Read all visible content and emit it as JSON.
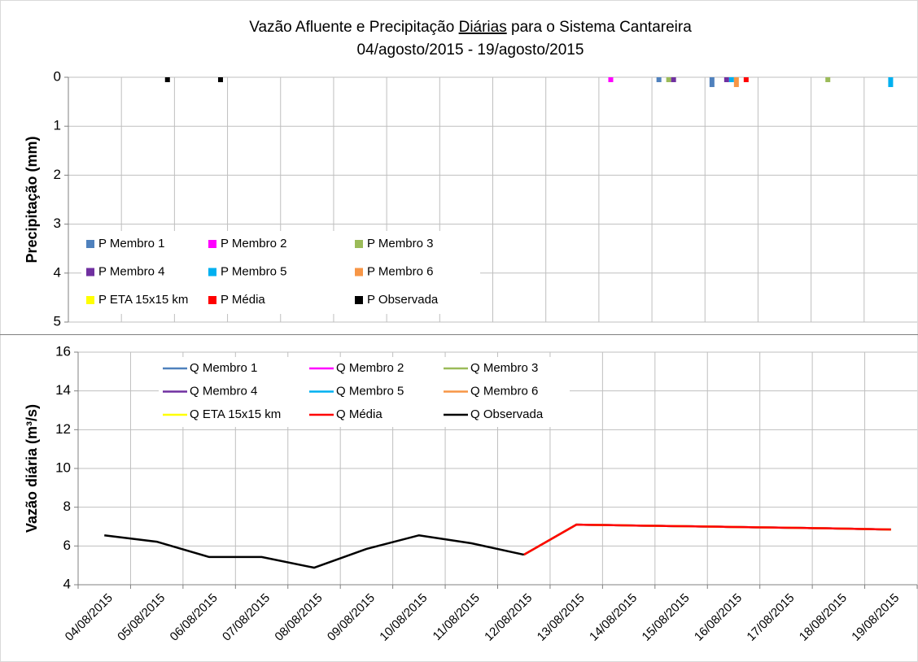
{
  "chart_data": [
    {
      "type": "bar",
      "title_parts": [
        "Vazão Afluente e Precipitação ",
        "Diárias",
        " para o Sistema Cantareira"
      ],
      "subtitle": "04/agosto/2015 - 19/agosto/2015",
      "ylabel": "Precipitação (mm)",
      "ylim": [
        0,
        5
      ],
      "y_inverted": true,
      "yticks": [
        0,
        1,
        2,
        3,
        4,
        5
      ],
      "grid": true,
      "series": [
        {
          "name": "P Membro 1",
          "color": "#4f81bd",
          "values": [
            0,
            0,
            0,
            0,
            0,
            0,
            0,
            0,
            0,
            0,
            0,
            0.1,
            0.2,
            0,
            0,
            0
          ]
        },
        {
          "name": "P Membro 2",
          "color": "#ff00ff",
          "values": [
            0,
            0,
            0,
            0,
            0,
            0,
            0,
            0,
            0,
            0,
            0.1,
            0,
            0,
            0,
            0,
            0
          ]
        },
        {
          "name": "P Membro 3",
          "color": "#9bbb59",
          "values": [
            0,
            0,
            0,
            0,
            0,
            0,
            0,
            0,
            0,
            0,
            0,
            0.1,
            0,
            0,
            0.1,
            0
          ]
        },
        {
          "name": "P Membro 4",
          "color": "#7030a0",
          "values": [
            0,
            0,
            0,
            0,
            0,
            0,
            0,
            0,
            0,
            0,
            0,
            0.1,
            0.1,
            0,
            0,
            0
          ]
        },
        {
          "name": "P Membro 5",
          "color": "#00b0f0",
          "values": [
            0,
            0,
            0,
            0,
            0,
            0,
            0,
            0,
            0,
            0,
            0,
            0,
            0.1,
            0,
            0,
            0.2
          ]
        },
        {
          "name": "P Membro 6",
          "color": "#f79646",
          "values": [
            0,
            0,
            0,
            0,
            0,
            0,
            0,
            0,
            0,
            0,
            0,
            0,
            0.2,
            0,
            0,
            0
          ]
        },
        {
          "name": "P ETA 15x15 km",
          "color": "#ffff00",
          "values": [
            0,
            0,
            0,
            0,
            0,
            0,
            0,
            0,
            0,
            0,
            0,
            0,
            0,
            0,
            0,
            0
          ]
        },
        {
          "name": "P Média",
          "color": "#ff0000",
          "values": [
            0,
            0,
            0,
            0,
            0,
            0,
            0,
            0,
            0,
            0,
            0,
            0,
            0.1,
            0,
            0,
            0
          ]
        },
        {
          "name": "P Observada",
          "color": "#000000",
          "values": [
            0,
            0.1,
            0.1,
            0,
            0,
            0,
            0,
            0,
            0,
            0,
            0,
            0,
            0,
            0,
            0,
            0
          ]
        }
      ]
    },
    {
      "type": "line",
      "ylabel": "Vazão diária (m³/s)",
      "categories": [
        "04/08/2015",
        "05/08/2015",
        "06/08/2015",
        "07/08/2015",
        "08/08/2015",
        "09/08/2015",
        "10/08/2015",
        "11/08/2015",
        "12/08/2015",
        "13/08/2015",
        "14/08/2015",
        "15/08/2015",
        "16/08/2015",
        "17/08/2015",
        "18/08/2015",
        "19/08/2015"
      ],
      "ylim": [
        4,
        16
      ],
      "yticks": [
        4,
        6,
        8,
        10,
        12,
        14,
        16
      ],
      "grid": true,
      "series": [
        {
          "name": "Q Membro 1",
          "color": "#4f81bd",
          "values": [
            null,
            null,
            null,
            null,
            null,
            null,
            null,
            null,
            5.55,
            7.1,
            7.06,
            7.02,
            6.98,
            6.94,
            6.9,
            6.85
          ]
        },
        {
          "name": "Q Membro 2",
          "color": "#ff00ff",
          "values": [
            null,
            null,
            null,
            null,
            null,
            null,
            null,
            null,
            5.55,
            7.1,
            7.06,
            7.02,
            6.98,
            6.94,
            6.9,
            6.85
          ]
        },
        {
          "name": "Q Membro 3",
          "color": "#9bbb59",
          "values": [
            null,
            null,
            null,
            null,
            null,
            null,
            null,
            null,
            5.55,
            7.1,
            7.06,
            7.02,
            6.98,
            6.94,
            6.9,
            6.85
          ]
        },
        {
          "name": "Q Membro 4",
          "color": "#7030a0",
          "values": [
            null,
            null,
            null,
            null,
            null,
            null,
            null,
            null,
            5.55,
            7.1,
            7.06,
            7.02,
            6.98,
            6.94,
            6.9,
            6.85
          ]
        },
        {
          "name": "Q Membro 5",
          "color": "#00b0f0",
          "values": [
            null,
            null,
            null,
            null,
            null,
            null,
            null,
            null,
            5.55,
            7.1,
            7.06,
            7.02,
            6.98,
            6.94,
            6.9,
            6.85
          ]
        },
        {
          "name": "Q Membro 6",
          "color": "#f79646",
          "values": [
            null,
            null,
            null,
            null,
            null,
            null,
            null,
            null,
            5.55,
            7.1,
            7.06,
            7.02,
            6.98,
            6.94,
            6.9,
            6.85
          ]
        },
        {
          "name": "Q ETA 15x15 km",
          "color": "#ffff00",
          "values": [
            null,
            null,
            null,
            null,
            null,
            null,
            null,
            null,
            5.55,
            7.1,
            7.06,
            7.02,
            6.98,
            6.94,
            6.9,
            6.85
          ]
        },
        {
          "name": "Q Média",
          "color": "#ff0000",
          "values": [
            null,
            null,
            null,
            null,
            null,
            null,
            null,
            null,
            5.55,
            7.1,
            7.06,
            7.02,
            6.98,
            6.94,
            6.9,
            6.85
          ]
        },
        {
          "name": "Q Observada",
          "color": "#000000",
          "values": [
            6.55,
            6.22,
            5.43,
            5.43,
            4.88,
            5.85,
            6.55,
            6.14,
            5.55,
            null,
            null,
            null,
            null,
            null,
            null,
            null
          ]
        }
      ]
    }
  ]
}
